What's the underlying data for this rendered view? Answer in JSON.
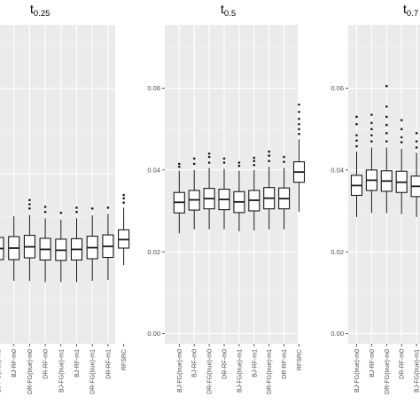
{
  "chart_data": [
    {
      "type": "box",
      "title": "t",
      "title_subscript": "0.25",
      "ylim": [
        0,
        0.075
      ],
      "yticks": [],
      "grid": true,
      "categories": [
        "BJ-FG(true)-m0",
        "BJ-RF-m0",
        "DR-FG(true)-m0",
        "DR-RF-m0",
        "BJ-FG(true)-m1",
        "BJ-RF-m1",
        "DR-FG(true)-m1",
        "DR-RF-m1",
        "RFSRC"
      ],
      "boxes": [
        {
          "min": 0.018,
          "q1": 0.0198,
          "median": 0.0224,
          "q3": 0.025,
          "max": 0.028,
          "outliers": []
        },
        {
          "min": 0.0148,
          "q1": 0.0198,
          "median": 0.0225,
          "q3": 0.0252,
          "max": 0.03,
          "outliers": []
        },
        {
          "min": 0.0148,
          "q1": 0.0202,
          "median": 0.0228,
          "q3": 0.0255,
          "max": 0.0303,
          "outliers": [
            0.0318,
            0.0328,
            0.0338
          ]
        },
        {
          "min": 0.0145,
          "q1": 0.0197,
          "median": 0.0222,
          "q3": 0.0248,
          "max": 0.0295,
          "outliers": [
            0.031,
            0.0322
          ]
        },
        {
          "min": 0.0145,
          "q1": 0.0196,
          "median": 0.022,
          "q3": 0.0246,
          "max": 0.0292,
          "outliers": [
            0.0308
          ]
        },
        {
          "min": 0.0145,
          "q1": 0.0197,
          "median": 0.0222,
          "q3": 0.0247,
          "max": 0.0295,
          "outliers": [
            0.031,
            0.032
          ]
        },
        {
          "min": 0.0148,
          "q1": 0.02,
          "median": 0.0226,
          "q3": 0.0253,
          "max": 0.0302,
          "outliers": [
            0.0318
          ]
        },
        {
          "min": 0.015,
          "q1": 0.0203,
          "median": 0.0229,
          "q3": 0.0256,
          "max": 0.0305,
          "outliers": [
            0.032
          ]
        },
        {
          "min": 0.0185,
          "q1": 0.0225,
          "median": 0.0245,
          "q3": 0.0268,
          "max": 0.032,
          "outliers": [
            0.0332,
            0.0342,
            0.035
          ]
        }
      ]
    },
    {
      "type": "box",
      "title": "t",
      "title_subscript": "0.5",
      "ylim": [
        -0.0025,
        0.0755
      ],
      "yticks": [
        "0.00",
        "0.02",
        "0.04",
        "0.06"
      ],
      "grid": true,
      "categories": [
        "BJ-FG(true)-m0",
        "BJ-RF-m0",
        "DR-FG(true)-m0",
        "DR-RF-m0",
        "BJ-FG(true)-m1",
        "BJ-RF-m1",
        "DR-FG(true)-m1",
        "DR-RF-m1",
        "RFSRC"
      ],
      "boxes": [
        {
          "min": 0.0245,
          "q1": 0.0295,
          "median": 0.0321,
          "q3": 0.0345,
          "max": 0.0398,
          "outliers": [
            0.0408,
            0.0415
          ]
        },
        {
          "min": 0.0255,
          "q1": 0.0302,
          "median": 0.0327,
          "q3": 0.035,
          "max": 0.04,
          "outliers": [
            0.0415,
            0.0428
          ]
        },
        {
          "min": 0.0255,
          "q1": 0.0305,
          "median": 0.033,
          "q3": 0.0355,
          "max": 0.0405,
          "outliers": [
            0.0418,
            0.0432,
            0.044
          ]
        },
        {
          "min": 0.0255,
          "q1": 0.0303,
          "median": 0.0328,
          "q3": 0.0353,
          "max": 0.0403,
          "outliers": [
            0.0418,
            0.0428
          ]
        },
        {
          "min": 0.025,
          "q1": 0.0296,
          "median": 0.0322,
          "q3": 0.0347,
          "max": 0.0398,
          "outliers": [
            0.041,
            0.0418
          ]
        },
        {
          "min": 0.0252,
          "q1": 0.03,
          "median": 0.0326,
          "q3": 0.035,
          "max": 0.04,
          "outliers": [
            0.0412,
            0.0422,
            0.043
          ]
        },
        {
          "min": 0.0255,
          "q1": 0.0305,
          "median": 0.0331,
          "q3": 0.0357,
          "max": 0.0408,
          "outliers": [
            0.0422,
            0.0435,
            0.0445
          ]
        },
        {
          "min": 0.0255,
          "q1": 0.0305,
          "median": 0.033,
          "q3": 0.0356,
          "max": 0.0405,
          "outliers": [
            0.042,
            0.0432
          ]
        },
        {
          "min": 0.0298,
          "q1": 0.037,
          "median": 0.0395,
          "q3": 0.042,
          "max": 0.0475,
          "outliers": [
            0.0488,
            0.05,
            0.0512,
            0.0525,
            0.0542,
            0.056
          ]
        }
      ]
    },
    {
      "type": "box",
      "title": "t",
      "title_subscript": "0.7",
      "ylim": [
        -0.0025,
        0.0755
      ],
      "yticks": [
        "0.00",
        "0.02",
        "0.04",
        "0.06"
      ],
      "grid": true,
      "categories": [
        "BJ-FG(true)-m0",
        "BJ-RF-m0",
        "DR-FG(true)-m0",
        "DR-RF-m0",
        "BJ-FG(true)-m1"
      ],
      "boxes": [
        {
          "min": 0.0285,
          "q1": 0.0338,
          "median": 0.0362,
          "q3": 0.0387,
          "max": 0.0445,
          "outliers": [
            0.0458,
            0.0472,
            0.0485,
            0.0512,
            0.053
          ]
        },
        {
          "min": 0.0295,
          "q1": 0.035,
          "median": 0.0375,
          "q3": 0.04,
          "max": 0.0455,
          "outliers": [
            0.047,
            0.0485,
            0.05,
            0.0515,
            0.0535
          ]
        },
        {
          "min": 0.0295,
          "q1": 0.0348,
          "median": 0.0373,
          "q3": 0.0398,
          "max": 0.0455,
          "outliers": [
            0.047,
            0.049,
            0.051,
            0.053,
            0.0555,
            0.0605
          ]
        },
        {
          "min": 0.0292,
          "q1": 0.0345,
          "median": 0.037,
          "q3": 0.0397,
          "max": 0.0452,
          "outliers": [
            0.0468,
            0.048,
            0.05,
            0.0522
          ]
        },
        {
          "min": 0.0285,
          "q1": 0.0335,
          "median": 0.036,
          "q3": 0.0385,
          "max": 0.0442,
          "outliers": [
            0.0455,
            0.047,
            0.049
          ]
        }
      ]
    }
  ]
}
